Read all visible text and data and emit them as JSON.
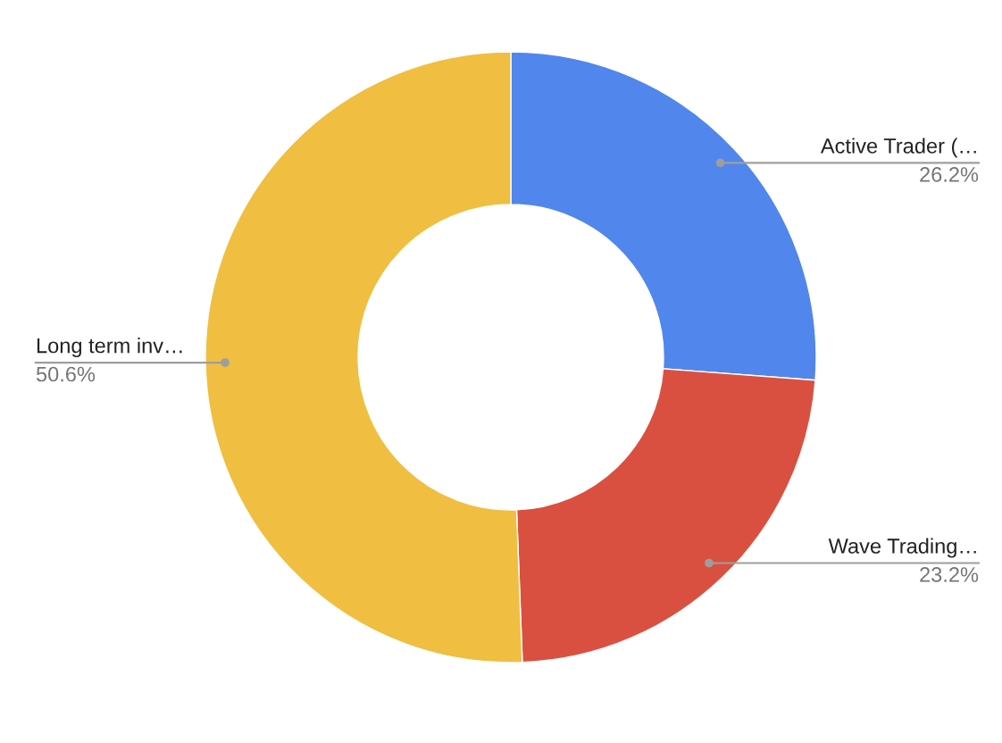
{
  "chart_data": {
    "type": "donut",
    "categories": [
      "Active Trader (…",
      "Wave Trading…",
      "Long term inv…"
    ],
    "values": [
      26.2,
      23.2,
      50.6
    ],
    "colors": [
      "#5186ec",
      "#da5040",
      "#f0be40"
    ],
    "value_labels": [
      "26.2%",
      "23.2%",
      "50.6%"
    ],
    "legend": false
  }
}
